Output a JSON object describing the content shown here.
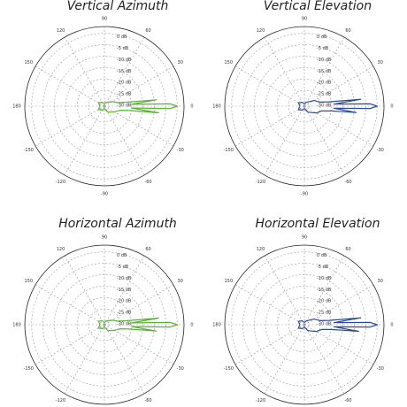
{
  "chart_data": [
    {
      "type": "polar",
      "title": "Vertical Azimuth",
      "color": "#5bb336",
      "theta": [
        -180,
        -150,
        -120,
        -90,
        -60,
        -30,
        -15,
        -10,
        -7,
        -4,
        -2,
        0,
        2,
        4,
        7,
        10,
        15,
        30,
        60,
        90,
        120,
        150,
        180
      ],
      "values": [
        -30,
        -29,
        -30,
        -31,
        -29,
        -27,
        -25,
        -21,
        -8,
        -20,
        -3,
        0,
        -3,
        -20,
        -9,
        -22,
        -26,
        -28,
        -30,
        -31,
        -30,
        -29,
        -30
      ],
      "rlim": [
        -32,
        3
      ],
      "rticks": [
        {
          "value": 0,
          "label": "0 dB"
        },
        {
          "value": -5,
          "label": "-5 dB"
        },
        {
          "value": -10,
          "label": "-10 dB"
        },
        {
          "value": -15,
          "label": "-15 dB"
        },
        {
          "value": -20,
          "label": "-20 dB"
        },
        {
          "value": -25,
          "label": "-25 dB"
        },
        {
          "value": -30,
          "label": "-30 dB"
        }
      ],
      "thetaticks": [
        90,
        60,
        30,
        0,
        -30,
        -60,
        -90,
        -120,
        -150,
        180,
        150,
        120
      ]
    },
    {
      "type": "polar",
      "title": "Vertical Elevation",
      "color": "#2c4a9a",
      "theta": [
        -180,
        -150,
        -120,
        -90,
        -60,
        -30,
        -15,
        -10,
        -7,
        -4,
        -2,
        0,
        2,
        4,
        7,
        10,
        15,
        30,
        60,
        90,
        120,
        150,
        180
      ],
      "values": [
        -30,
        -29,
        -30,
        -31,
        -29,
        -26,
        -24,
        -20,
        -9,
        -19,
        -3,
        0,
        -3,
        -19,
        -7,
        -21,
        -25,
        -27,
        -30,
        -31,
        -30,
        -29,
        -30
      ],
      "rlim": [
        -32,
        3
      ],
      "rticks": [
        {
          "value": 0,
          "label": "0 dB"
        },
        {
          "value": -5,
          "label": "-5 dB"
        },
        {
          "value": -10,
          "label": "-10 dB"
        },
        {
          "value": -15,
          "label": "-15 dB"
        },
        {
          "value": -20,
          "label": "-20 dB"
        },
        {
          "value": -25,
          "label": "-25 dB"
        },
        {
          "value": -30,
          "label": "-30 dB"
        }
      ],
      "thetaticks": [
        90,
        60,
        30,
        0,
        -30,
        -60,
        -90,
        -120,
        -150,
        180,
        150,
        120
      ]
    },
    {
      "type": "polar",
      "title": "Horizontal Azimuth",
      "color": "#5bb336",
      "theta": [
        -180,
        -150,
        -120,
        -90,
        -60,
        -30,
        -15,
        -10,
        -7,
        -4,
        -2,
        0,
        2,
        4,
        7,
        10,
        15,
        30,
        60,
        90,
        120,
        150,
        180
      ],
      "values": [
        -30,
        -29,
        -30,
        -31,
        -29,
        -27,
        -25,
        -21,
        -9,
        -20,
        -3,
        0,
        -3,
        -20,
        -8,
        -22,
        -26,
        -28,
        -30,
        -31,
        -30,
        -29,
        -30
      ],
      "rlim": [
        -32,
        3
      ],
      "rticks": [
        {
          "value": 0,
          "label": "0 dB"
        },
        {
          "value": -5,
          "label": "-5 dB"
        },
        {
          "value": -10,
          "label": "-10 dB"
        },
        {
          "value": -15,
          "label": "-15 dB"
        },
        {
          "value": -20,
          "label": "-20 dB"
        },
        {
          "value": -25,
          "label": "-25 dB"
        },
        {
          "value": -30,
          "label": "-30 dB"
        }
      ],
      "thetaticks": [
        90,
        60,
        30,
        0,
        -30,
        -60,
        -90,
        -120,
        -150,
        180,
        150,
        120
      ]
    },
    {
      "type": "polar",
      "title": "Horizontal Elevation",
      "color": "#2c4a9a",
      "theta": [
        -180,
        -150,
        -120,
        -90,
        -60,
        -30,
        -15,
        -10,
        -7,
        -4,
        -2,
        0,
        2,
        4,
        7,
        10,
        15,
        30,
        60,
        90,
        120,
        150,
        180
      ],
      "values": [
        -30,
        -29,
        -30,
        -31,
        -29,
        -26,
        -24,
        -20,
        -8,
        -19,
        -3,
        0,
        -3,
        -19,
        -7,
        -21,
        -25,
        -27,
        -30,
        -31,
        -30,
        -29,
        -30
      ],
      "rlim": [
        -32,
        3
      ],
      "rticks": [
        {
          "value": 0,
          "label": "0 dB"
        },
        {
          "value": -5,
          "label": "-5 dB"
        },
        {
          "value": -10,
          "label": "-10 dB"
        },
        {
          "value": -15,
          "label": "-15 dB"
        },
        {
          "value": -20,
          "label": "-20 dB"
        },
        {
          "value": -25,
          "label": "-25 dB"
        },
        {
          "value": -30,
          "label": "-30 dB"
        }
      ],
      "thetaticks": [
        90,
        60,
        30,
        0,
        -30,
        -60,
        -90,
        -120,
        -150,
        180,
        150,
        120
      ]
    }
  ]
}
